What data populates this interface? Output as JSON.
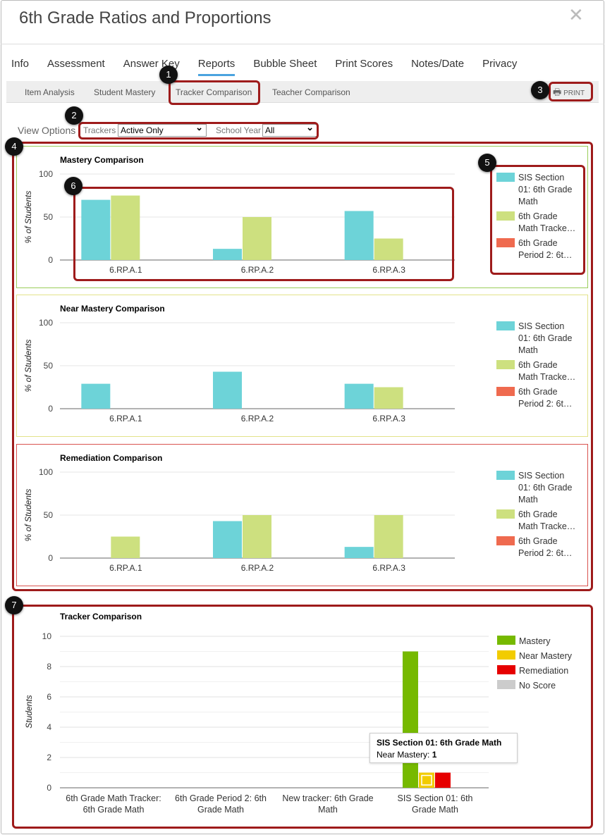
{
  "title": "6th Grade Ratios and Proportions",
  "tabs": [
    "Info",
    "Assessment",
    "Answer Key",
    "Reports",
    "Bubble Sheet",
    "Print Scores",
    "Notes/Date",
    "Privacy"
  ],
  "active_tab": "Reports",
  "subtabs": [
    "Item Analysis",
    "Student Mastery",
    "Tracker Comparison",
    "Teacher Comparison"
  ],
  "print_label": "PRINT",
  "view_options": {
    "label": "View Options",
    "trackers_label": "Trackers",
    "trackers_value": "Active Only",
    "year_label": "School Year",
    "year_value": "All"
  },
  "badges": [
    "1",
    "2",
    "3",
    "4",
    "5",
    "6",
    "7"
  ],
  "comparison_legend": [
    {
      "name": "SIS Section 01: 6th Grade Math",
      "lines": [
        "SIS Section",
        "01: 6th Grade",
        "Math"
      ],
      "color": "#6dd3d8"
    },
    {
      "name": "6th Grade Math Tracker",
      "lines": [
        "6th Grade",
        "Math Tracke…"
      ],
      "color": "#cde07f"
    },
    {
      "name": "6th Grade Period 2",
      "lines": [
        "6th Grade",
        "Period 2: 6t…"
      ],
      "color": "#ef6a4f"
    }
  ],
  "chart_data": [
    {
      "type": "bar",
      "title": "Mastery Comparison",
      "ylabel": "% of Students",
      "ylim": [
        0,
        100
      ],
      "yticks": [
        0,
        50,
        100
      ],
      "categories": [
        "6.RP.A.1",
        "6.RP.A.2",
        "6.RP.A.3"
      ],
      "series": [
        {
          "name": "SIS Section 01: 6th Grade Math",
          "values": [
            70,
            13,
            57
          ]
        },
        {
          "name": "6th Grade Math Tracke…",
          "values": [
            75,
            50,
            25
          ]
        },
        {
          "name": "6th Grade Period 2: 6t…",
          "values": [
            0,
            0,
            0
          ]
        }
      ],
      "border": "#9acd5a"
    },
    {
      "type": "bar",
      "title": "Near Mastery Comparison",
      "ylabel": "% of Students",
      "ylim": [
        0,
        100
      ],
      "yticks": [
        0,
        50,
        100
      ],
      "categories": [
        "6.RP.A.1",
        "6.RP.A.2",
        "6.RP.A.3"
      ],
      "series": [
        {
          "name": "SIS Section 01: 6th Grade Math",
          "values": [
            29,
            43,
            29
          ]
        },
        {
          "name": "6th Grade Math Tracke…",
          "values": [
            0,
            0,
            25
          ]
        },
        {
          "name": "6th Grade Period 2: 6t…",
          "values": [
            0,
            0,
            0
          ]
        }
      ],
      "border": "#e3e28a"
    },
    {
      "type": "bar",
      "title": "Remediation Comparison",
      "ylabel": "% of Students",
      "ylim": [
        0,
        100
      ],
      "yticks": [
        0,
        50,
        100
      ],
      "categories": [
        "6.RP.A.1",
        "6.RP.A.2",
        "6.RP.A.3"
      ],
      "series": [
        {
          "name": "SIS Section 01: 6th Grade Math",
          "values": [
            0,
            43,
            13
          ]
        },
        {
          "name": "6th Grade Math Tracke…",
          "values": [
            25,
            50,
            50
          ]
        },
        {
          "name": "6th Grade Period 2: 6t…",
          "values": [
            0,
            0,
            0
          ]
        }
      ],
      "border": "#d9534f"
    },
    {
      "type": "bar",
      "title": "Tracker Comparison",
      "ylabel": "Students",
      "ylim": [
        0,
        10
      ],
      "yticks": [
        0,
        2,
        4,
        6,
        8,
        10
      ],
      "categories": [
        [
          "6th Grade Math Tracker:",
          "6th Grade Math"
        ],
        [
          "6th Grade Period 2: 6th",
          "Grade Math"
        ],
        [
          "New tracker: 6th Grade",
          "Math"
        ],
        [
          "SIS Section 01: 6th",
          "Grade Math"
        ]
      ],
      "series": [
        {
          "name": "Mastery",
          "color": "#76b900",
          "values": [
            0,
            0,
            0,
            9
          ]
        },
        {
          "name": "Near Mastery",
          "color": "#f2cc00",
          "values": [
            0,
            0,
            0,
            1
          ]
        },
        {
          "name": "Remediation",
          "color": "#e60000",
          "values": [
            0,
            0,
            0,
            1
          ]
        },
        {
          "name": "No Score",
          "color": "#cccccc",
          "values": [
            0,
            0,
            0,
            0
          ]
        }
      ]
    }
  ],
  "tooltip": {
    "title": "SIS Section 01: 6th Grade Math",
    "label": "Near Mastery:",
    "value": "1"
  }
}
